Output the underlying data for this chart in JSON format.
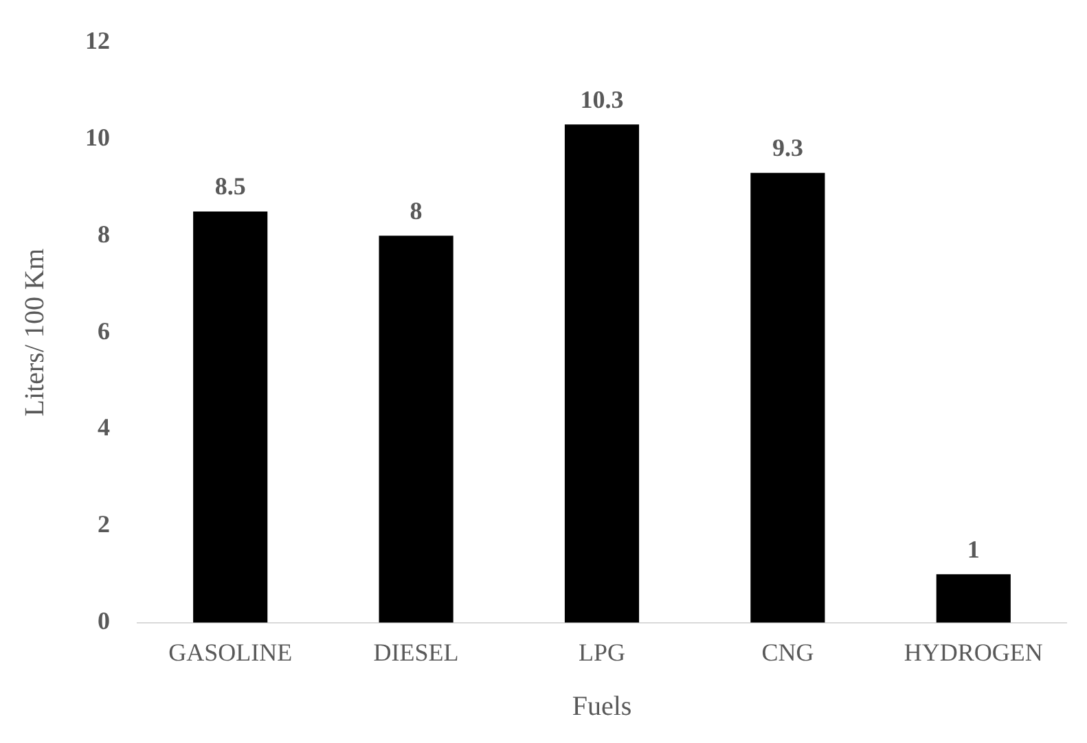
{
  "chart_data": {
    "type": "bar",
    "xlabel": "Fuels",
    "ylabel": "Liters/ 100 Km",
    "categories": [
      "GASOLINE",
      "DIESEL",
      "LPG",
      "CNG",
      "HYDROGEN"
    ],
    "values": [
      8.5,
      8,
      10.3,
      9.3,
      1
    ],
    "color": "#000000",
    "ylim": [
      0,
      12
    ],
    "yticks": [
      0,
      2,
      4,
      6,
      8,
      10,
      12
    ],
    "grid": false,
    "data_labels": true,
    "legend": false
  }
}
